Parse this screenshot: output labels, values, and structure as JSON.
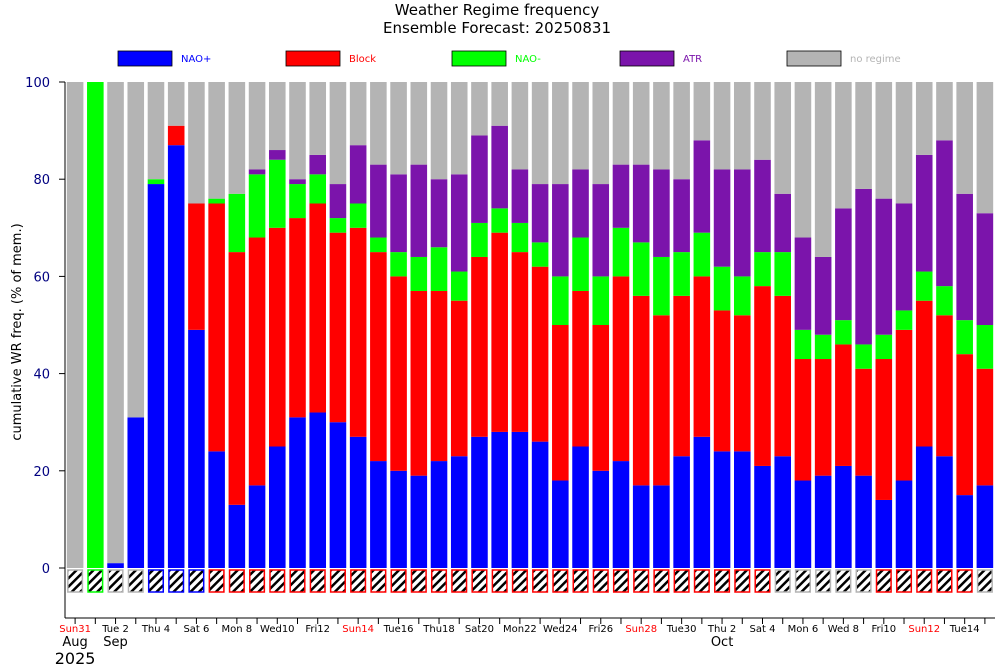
{
  "chart_data": {
    "type": "bar",
    "stacked": true,
    "title": "Weather Regime frequency",
    "subtitle": "Ensemble Forecast: 20250831",
    "ylabel": "cumulative WR freq. (% of mem.)",
    "ylim": [
      0,
      100
    ],
    "yticks": [
      0,
      20,
      40,
      60,
      80,
      100
    ],
    "grid": false,
    "legend_placement": "top",
    "colors": {
      "NAO+": "#0000ff",
      "Block": "#ff0000",
      "NAO-": "#00ff00",
      "ATR": "#7b14ab",
      "no regime": "#b4b4b4"
    },
    "legend_text_colors": {
      "NAO+": "#0000ff",
      "Block": "#ff0000",
      "NAO-": "#00ff00",
      "ATR": "#7b14ab",
      "no regime": "#b4b4b4"
    },
    "legend": [
      "NAO+",
      "Block",
      "NAO-",
      "ATR",
      "no regime"
    ],
    "x_labels": [
      {
        "index": 0,
        "text": "Sun31",
        "color": "#ff0000"
      },
      {
        "index": 2,
        "text": "Tue 2",
        "color": "#000000"
      },
      {
        "index": 4,
        "text": "Thu 4",
        "color": "#000000"
      },
      {
        "index": 6,
        "text": "Sat 6",
        "color": "#000000"
      },
      {
        "index": 8,
        "text": "Mon 8",
        "color": "#000000"
      },
      {
        "index": 10,
        "text": "Wed10",
        "color": "#000000"
      },
      {
        "index": 12,
        "text": "Fri12",
        "color": "#000000"
      },
      {
        "index": 14,
        "text": "Sun14",
        "color": "#ff0000"
      },
      {
        "index": 16,
        "text": "Tue16",
        "color": "#000000"
      },
      {
        "index": 18,
        "text": "Thu18",
        "color": "#000000"
      },
      {
        "index": 20,
        "text": "Sat20",
        "color": "#000000"
      },
      {
        "index": 22,
        "text": "Mon22",
        "color": "#000000"
      },
      {
        "index": 24,
        "text": "Wed24",
        "color": "#000000"
      },
      {
        "index": 26,
        "text": "Fri26",
        "color": "#000000"
      },
      {
        "index": 28,
        "text": "Sun28",
        "color": "#ff0000"
      },
      {
        "index": 30,
        "text": "Tue30",
        "color": "#000000"
      },
      {
        "index": 32,
        "text": "Thu 2",
        "color": "#000000"
      },
      {
        "index": 34,
        "text": "Sat 4",
        "color": "#000000"
      },
      {
        "index": 36,
        "text": "Mon 6",
        "color": "#000000"
      },
      {
        "index": 38,
        "text": "Wed 8",
        "color": "#000000"
      },
      {
        "index": 40,
        "text": "Fri10",
        "color": "#000000"
      },
      {
        "index": 42,
        "text": "Sun12",
        "color": "#ff0000"
      },
      {
        "index": 44,
        "text": "Tue14",
        "color": "#000000"
      }
    ],
    "month_labels": [
      {
        "index": 0,
        "text": "Aug"
      },
      {
        "index": 2,
        "text": "Sep"
      },
      {
        "index": 32,
        "text": "Oct"
      }
    ],
    "year_label": {
      "index": 0,
      "text": "2025"
    },
    "dominant_regime": [
      "no regime",
      "NAO-",
      "no regime",
      "no regime",
      "NAO+",
      "NAO+",
      "NAO+",
      "Block",
      "Block",
      "Block",
      "Block",
      "Block",
      "Block",
      "Block",
      "Block",
      "Block",
      "Block",
      "Block",
      "Block",
      "Block",
      "Block",
      "Block",
      "Block",
      "Block",
      "Block",
      "Block",
      "Block",
      "Block",
      "Block",
      "Block",
      "Block",
      "Block",
      "Block",
      "Block",
      "Block",
      "no regime",
      "no regime",
      "no regime",
      "no regime",
      "no regime",
      "Block",
      "Block",
      "Block",
      "Block",
      "Block",
      "no regime"
    ],
    "series": [
      {
        "name": "NAO+",
        "values": [
          0,
          0,
          1,
          31,
          79,
          87,
          49,
          24,
          13,
          17,
          25,
          31,
          32,
          30,
          27,
          22,
          20,
          19,
          22,
          23,
          27,
          28,
          28,
          26,
          18,
          25,
          20,
          22,
          17,
          17,
          23,
          27,
          24,
          24,
          21,
          23,
          18,
          19,
          21,
          19,
          14,
          18,
          25,
          23,
          15,
          17
        ]
      },
      {
        "name": "Block",
        "values": [
          0,
          0,
          0,
          0,
          0,
          4,
          26,
          51,
          52,
          51,
          45,
          41,
          43,
          39,
          43,
          43,
          40,
          38,
          35,
          32,
          37,
          41,
          37,
          36,
          32,
          32,
          30,
          38,
          39,
          35,
          33,
          33,
          29,
          28,
          37,
          33,
          25,
          24,
          25,
          22,
          29,
          31,
          30,
          29,
          29,
          24
        ]
      },
      {
        "name": "NAO-",
        "values": [
          0,
          100,
          0,
          0,
          1,
          0,
          0,
          1,
          12,
          13,
          14,
          7,
          6,
          3,
          5,
          3,
          5,
          7,
          9,
          6,
          7,
          5,
          6,
          5,
          10,
          11,
          10,
          10,
          11,
          12,
          9,
          9,
          9,
          8,
          7,
          9,
          6,
          5,
          5,
          5,
          5,
          4,
          6,
          6,
          7,
          9
        ]
      },
      {
        "name": "ATR",
        "values": [
          0,
          0,
          0,
          0,
          0,
          0,
          0,
          0,
          0,
          1,
          2,
          1,
          4,
          7,
          12,
          15,
          16,
          19,
          14,
          20,
          18,
          17,
          11,
          12,
          19,
          14,
          19,
          13,
          16,
          18,
          15,
          19,
          20,
          22,
          19,
          12,
          19,
          16,
          23,
          32,
          28,
          22,
          24,
          30,
          26,
          23
        ]
      },
      {
        "name": "no regime",
        "values": [
          100,
          0,
          99,
          69,
          20,
          9,
          25,
          24,
          23,
          18,
          14,
          20,
          15,
          21,
          13,
          17,
          19,
          17,
          20,
          19,
          11,
          9,
          18,
          21,
          21,
          18,
          21,
          17,
          17,
          18,
          20,
          12,
          18,
          18,
          16,
          23,
          32,
          36,
          26,
          22,
          24,
          25,
          15,
          12,
          23,
          27
        ]
      }
    ]
  }
}
